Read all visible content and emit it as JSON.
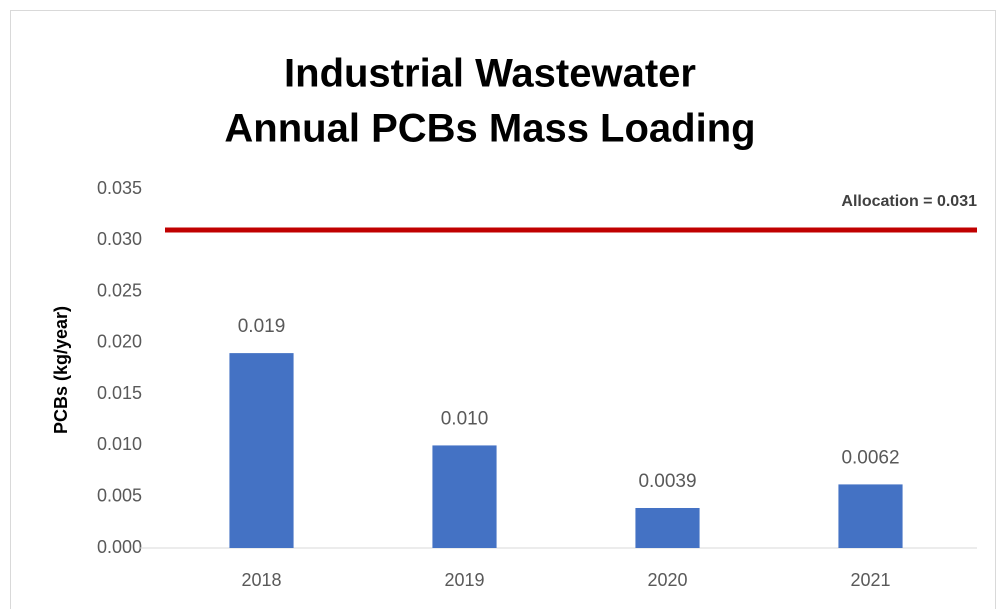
{
  "chart_data": {
    "type": "bar",
    "title": [
      "Industrial Wastewater",
      "Annual PCBs Mass Loading"
    ],
    "y_label": "PCBs (kg/year)",
    "categories": [
      "2018",
      "2019",
      "2020",
      "2021"
    ],
    "values": [
      0.019,
      0.01,
      0.0039,
      0.0062
    ],
    "value_labels": [
      "0.019",
      "0.010",
      "0.0039",
      "0.0062"
    ],
    "color": "#4472c4",
    "ylim": [
      0,
      0.035
    ],
    "yticks": [
      {
        "value": 0,
        "label": "0.000"
      },
      0.005,
      {
        "value": 0.01,
        "label": "0.010"
      },
      0.015,
      {
        "value": 0.02,
        "label": "0.020"
      },
      0.025,
      {
        "value": 0.03,
        "label": "0.030"
      },
      0.035
    ],
    "grid": false,
    "reference_line": {
      "value": 0.031,
      "label": "Allocation = 0.031",
      "color": "#c00000"
    }
  }
}
